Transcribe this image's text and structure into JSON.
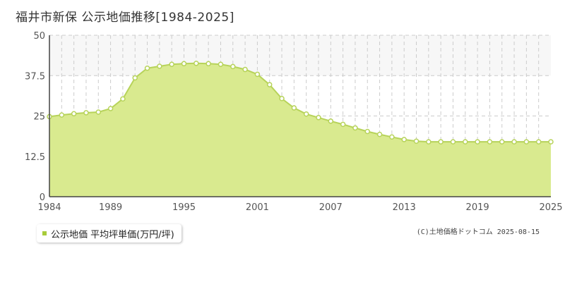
{
  "title": "福井市新保 公示地価推移[1984-2025]",
  "credit": "(C)土地価格ドットコム 2025-08-15",
  "colors": {
    "fill": "#d9ea8f",
    "line": "#b7d35a",
    "marker_fill": "#ffffff",
    "legend_swatch": "#a8cc3a",
    "grid": "#cccccc",
    "band": "#f7f7f7"
  },
  "chart_data": {
    "type": "area",
    "title": "",
    "xlabel": "",
    "ylabel": "",
    "xlim": [
      1984,
      2025
    ],
    "ylim": [
      0,
      50
    ],
    "y_ticks": [
      "0",
      "12.5",
      "25",
      "37.5",
      "50"
    ],
    "x_ticks": [
      "1984",
      "1989",
      "1995",
      "2001",
      "2007",
      "2013",
      "2019",
      "2025"
    ],
    "grid": true,
    "legend_position": "bottom-left",
    "series": [
      {
        "name": "公示地価 平均坪単価(万円/坪)",
        "x": [
          1984,
          1985,
          1986,
          1987,
          1988,
          1989,
          1990,
          1991,
          1992,
          1993,
          1994,
          1995,
          1996,
          1997,
          1998,
          1999,
          2000,
          2001,
          2002,
          2003,
          2004,
          2005,
          2006,
          2007,
          2008,
          2009,
          2010,
          2011,
          2012,
          2013,
          2014,
          2015,
          2016,
          2017,
          2018,
          2019,
          2020,
          2021,
          2022,
          2023,
          2024,
          2025
        ],
        "values": [
          24.8,
          25.3,
          25.7,
          26.0,
          26.2,
          27.3,
          30.3,
          36.8,
          39.8,
          40.4,
          41.0,
          41.2,
          41.3,
          41.2,
          41.0,
          40.3,
          39.4,
          37.9,
          34.7,
          30.4,
          27.5,
          25.6,
          24.5,
          23.4,
          22.4,
          21.3,
          20.2,
          19.3,
          18.5,
          17.7,
          17.2,
          17.0,
          17.0,
          17.0,
          17.0,
          17.0,
          17.0,
          17.0,
          17.0,
          17.0,
          17.0,
          17.0
        ]
      }
    ]
  }
}
